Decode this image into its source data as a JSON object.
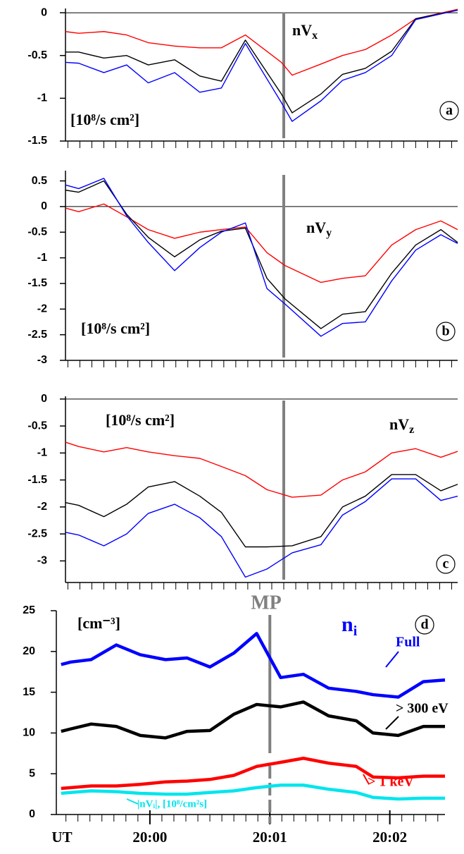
{
  "chart_data": [
    {
      "type": "line",
      "panel_label": "a",
      "title": {
        "text": "nV",
        "sub": "x"
      },
      "units": "[10⁸/s cm²]",
      "x": [
        -0.82,
        -0.71,
        -0.5,
        -0.31,
        -0.13,
        0.09,
        0.3,
        0.48,
        0.68,
        0.98,
        1.07,
        1.31,
        1.49,
        1.68,
        1.9,
        2.1,
        2.45
      ],
      "xlim": [
        -0.82,
        2.45
      ],
      "ylim": [
        -1.5,
        0.05
      ],
      "yticks": [
        0,
        -0.5,
        -1,
        -1.5
      ],
      "zero_line": true,
      "vline": 1,
      "series": [
        {
          "color": "#ff0000",
          "values": [
            -0.22,
            -0.24,
            -0.22,
            -0.26,
            -0.35,
            -0.39,
            -0.41,
            -0.41,
            -0.26,
            -0.58,
            -0.73,
            -0.6,
            -0.5,
            -0.43,
            -0.26,
            -0.07,
            0.04
          ]
        },
        {
          "color": "#000000",
          "values": [
            -0.46,
            -0.46,
            -0.53,
            -0.5,
            -0.61,
            -0.55,
            -0.74,
            -0.8,
            -0.32,
            -0.95,
            -1.17,
            -0.95,
            -0.72,
            -0.65,
            -0.45,
            -0.07,
            0.03
          ]
        },
        {
          "color": "#0000ff",
          "values": [
            -0.58,
            -0.59,
            -0.7,
            -0.61,
            -0.82,
            -0.7,
            -0.93,
            -0.88,
            -0.36,
            -1.05,
            -1.27,
            -1.03,
            -0.79,
            -0.7,
            -0.5,
            -0.08,
            0.03
          ]
        }
      ]
    },
    {
      "type": "line",
      "panel_label": "b",
      "title": {
        "text": "nV",
        "sub": "y"
      },
      "units": "[10⁸/s cm²]",
      "x": [
        -0.82,
        -0.71,
        -0.5,
        -0.31,
        -0.13,
        0.09,
        0.3,
        0.48,
        0.68,
        0.86,
        1.01,
        1.31,
        1.49,
        1.68,
        1.9,
        2.1,
        2.31,
        2.45
      ],
      "xlim": [
        -0.82,
        2.45
      ],
      "ylim": [
        -3,
        0.7
      ],
      "yticks": [
        0.5,
        0,
        -0.5,
        -1,
        -1.5,
        -2,
        -2.5,
        -3
      ],
      "zero_line": true,
      "vline": 1,
      "series": [
        {
          "color": "#ff0000",
          "values": [
            -0.03,
            -0.1,
            0.05,
            -0.2,
            -0.45,
            -0.62,
            -0.5,
            -0.45,
            -0.4,
            -0.9,
            -1.15,
            -1.48,
            -1.4,
            -1.35,
            -0.75,
            -0.45,
            -0.28,
            -0.45
          ]
        },
        {
          "color": "#000000",
          "values": [
            0.32,
            0.28,
            0.5,
            -0.15,
            -0.6,
            -0.98,
            -0.65,
            -0.48,
            -0.42,
            -1.4,
            -1.8,
            -2.38,
            -2.1,
            -2.05,
            -1.3,
            -0.75,
            -0.45,
            -0.7
          ]
        },
        {
          "color": "#0000ff",
          "values": [
            0.42,
            0.35,
            0.55,
            -0.18,
            -0.7,
            -1.25,
            -0.8,
            -0.5,
            -0.32,
            -1.6,
            -1.9,
            -2.53,
            -2.28,
            -2.25,
            -1.45,
            -0.85,
            -0.55,
            -0.72
          ]
        }
      ]
    },
    {
      "type": "line",
      "panel_label": "c",
      "title": {
        "text": "nV",
        "sub": "z"
      },
      "units": "[10⁸/s cm²]",
      "x": [
        -0.82,
        -0.71,
        -0.5,
        -0.31,
        -0.13,
        0.09,
        0.3,
        0.48,
        0.68,
        0.86,
        1.07,
        1.31,
        1.49,
        1.68,
        1.9,
        2.1,
        2.31,
        2.45
      ],
      "xlim": [
        -0.82,
        2.45
      ],
      "ylim": [
        -3.4,
        0.05
      ],
      "yticks": [
        0,
        -0.5,
        -1,
        -1.5,
        -2,
        -2.5,
        -3
      ],
      "zero_line": true,
      "vline": 1,
      "series": [
        {
          "color": "#ff0000",
          "values": [
            -0.8,
            -0.88,
            -0.98,
            -0.9,
            -0.98,
            -1.05,
            -1.1,
            -1.25,
            -1.42,
            -1.68,
            -1.82,
            -1.78,
            -1.5,
            -1.35,
            -1.0,
            -0.92,
            -1.08,
            -0.97
          ]
        },
        {
          "color": "#000000",
          "values": [
            -1.92,
            -1.97,
            -2.18,
            -1.95,
            -1.63,
            -1.53,
            -1.8,
            -2.1,
            -2.74,
            -2.74,
            -2.72,
            -2.55,
            -2.0,
            -1.8,
            -1.4,
            -1.4,
            -1.7,
            -1.58
          ]
        },
        {
          "color": "#0000ff",
          "values": [
            -2.47,
            -2.52,
            -2.72,
            -2.5,
            -2.12,
            -1.95,
            -2.2,
            -2.55,
            -3.3,
            -3.15,
            -2.85,
            -2.7,
            -2.15,
            -1.9,
            -1.48,
            -1.48,
            -1.88,
            -1.8
          ]
        }
      ]
    },
    {
      "type": "line",
      "panel_label": "d",
      "title": {
        "text": "n",
        "sub": "i"
      },
      "units": "[cm⁻³]",
      "marker_label": "MP",
      "x_label": "UT",
      "x": [
        -0.74,
        -0.66,
        -0.49,
        -0.28,
        -0.08,
        0.13,
        0.31,
        0.5,
        0.7,
        0.89,
        1.09,
        1.28,
        1.49,
        1.72,
        1.86,
        2.07,
        2.28,
        2.46
      ],
      "xlim": [
        -0.78,
        2.46
      ],
      "xticks": [
        {
          "value": 0,
          "label": "20:00"
        },
        {
          "value": 1,
          "label": "20:01"
        },
        {
          "value": 2,
          "label": "20:02"
        }
      ],
      "ylim": [
        0,
        25
      ],
      "yticks": [
        0,
        5,
        10,
        15,
        20,
        25
      ],
      "vline": 1,
      "series": [
        {
          "name": "Full",
          "color": "#0000ff",
          "values": [
            18.4,
            18.7,
            19,
            20.8,
            19.6,
            19,
            19.2,
            18.1,
            19.8,
            22.2,
            16.8,
            17.2,
            15.5,
            15.1,
            14.7,
            14.4,
            16.3,
            16.5
          ]
        },
        {
          "name": "> 300 eV",
          "color": "#000000",
          "values": [
            10.2,
            10.5,
            11.1,
            10.8,
            9.7,
            9.4,
            10.2,
            10.3,
            12.3,
            13.5,
            13.2,
            13.8,
            12.1,
            11.5,
            10,
            9.7,
            10.8,
            10.8
          ]
        },
        {
          "name": "> 1 keV",
          "color": "#ff0000",
          "values": [
            3.2,
            3.3,
            3.5,
            3.5,
            3.7,
            4,
            4.1,
            4.3,
            4.8,
            5.9,
            6.4,
            6.9,
            6.3,
            5.9,
            4.6,
            4.5,
            4.7,
            4.7
          ]
        },
        {
          "name": "|nVᵢ|, [10⁸/cm²s]",
          "color": "#00e5ee",
          "values": [
            2.6,
            2.7,
            2.9,
            2.8,
            2.6,
            2.5,
            2.5,
            2.7,
            2.9,
            3.3,
            3.6,
            3.6,
            3.1,
            2.7,
            2.1,
            1.9,
            2.0,
            2.0
          ]
        }
      ]
    }
  ]
}
